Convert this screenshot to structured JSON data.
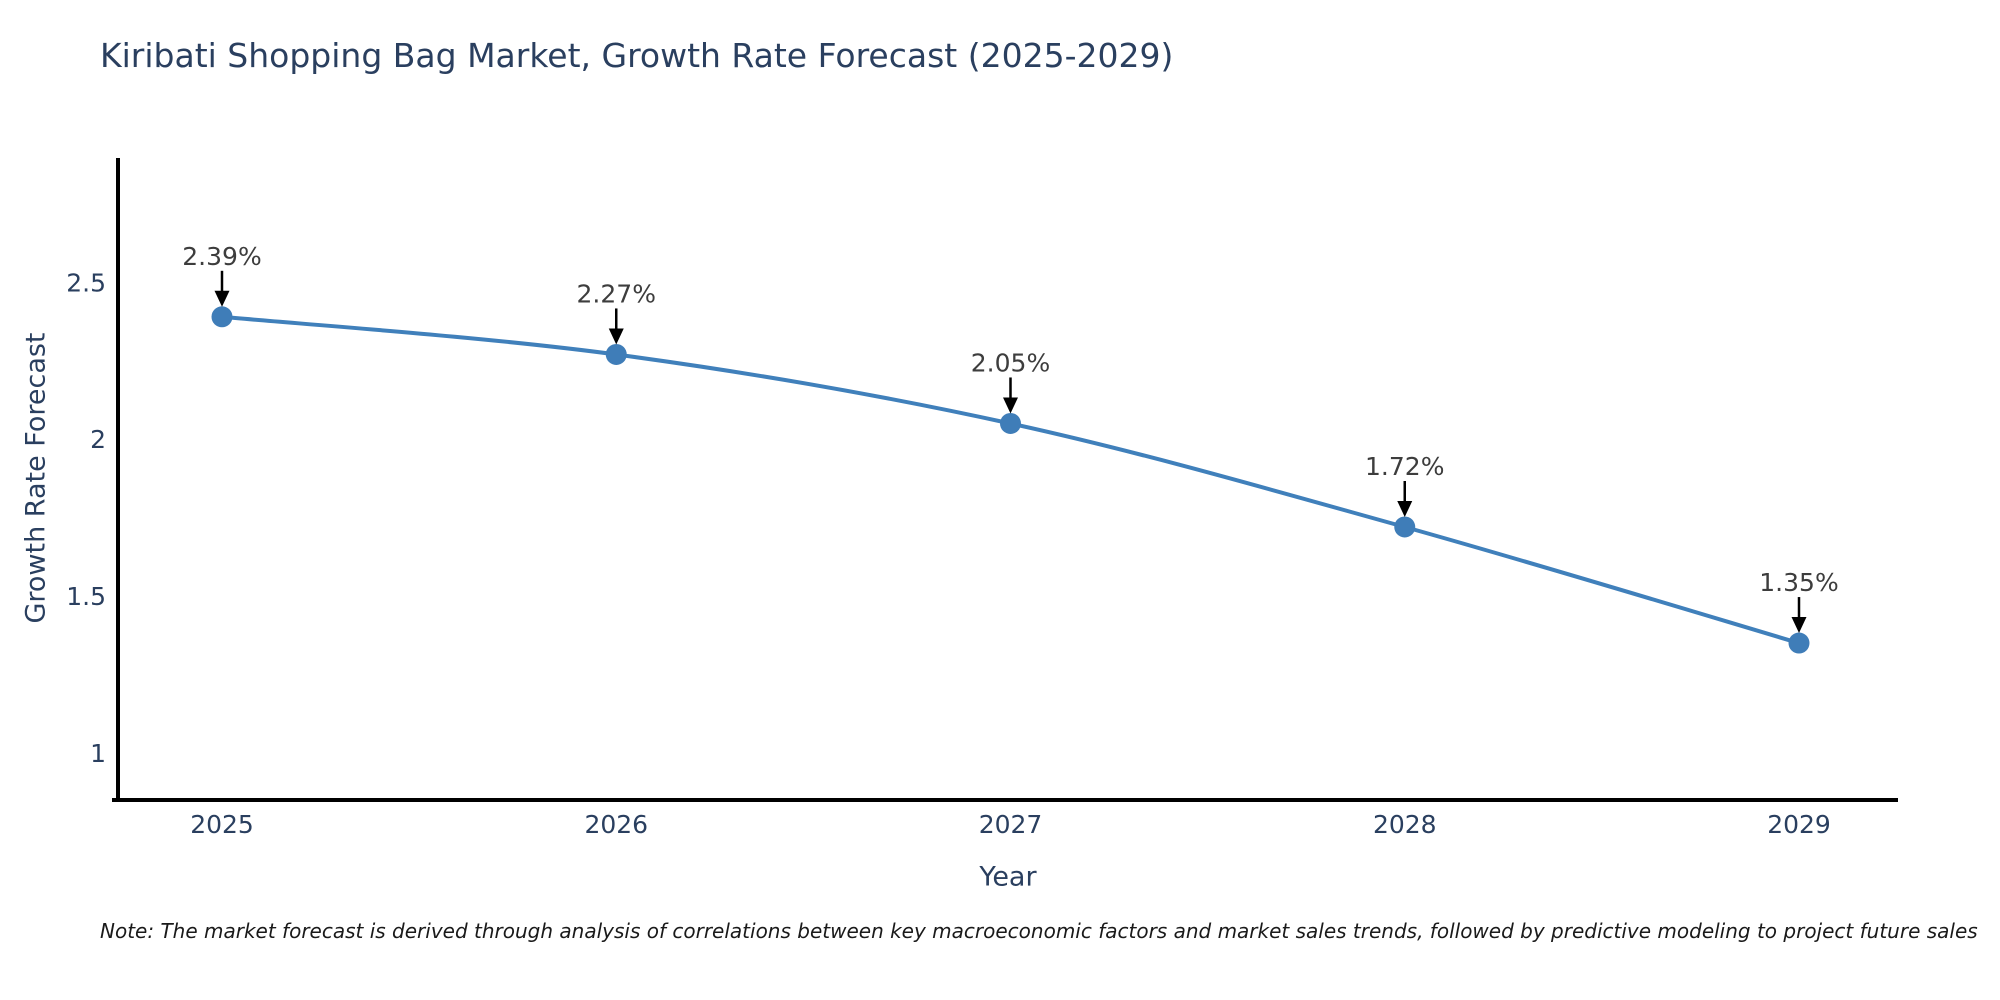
{
  "page": {
    "background_color": "#ffffff"
  },
  "chart_data": {
    "type": "line",
    "title": "Kiribati Shopping Bag Market, Growth Rate Forecast (2025-2029)",
    "xlabel": "Year",
    "ylabel": "Growth Rate Forecast",
    "categories": [
      "2025",
      "2026",
      "2027",
      "2028",
      "2029"
    ],
    "series": [
      {
        "name": "Growth Rate Forecast",
        "values": [
          2.39,
          2.27,
          2.05,
          1.72,
          1.35
        ]
      }
    ],
    "point_labels": [
      "2.39%",
      "2.27%",
      "2.05%",
      "1.72%",
      "1.35%"
    ],
    "yticks": [
      "2.5",
      "2",
      "1.5",
      "1"
    ],
    "ytick_values": [
      2.5,
      2,
      1.5,
      1
    ],
    "ylim": [
      0.85,
      2.9
    ],
    "grid": false,
    "legend": "none",
    "line_smoothing": "spline",
    "annotation_style": "down-arrow",
    "colors": {
      "line": "#4080bb",
      "marker": "#3f7db8",
      "spine": "#000000",
      "arrow": "#000000",
      "title_text": "#2a3f5f",
      "axis_text": "#2a3f5f",
      "annotation_text": "#3d3d3d",
      "note_text": "#1a1a1a"
    },
    "note": "Note: The market forecast is derived through analysis of correlations between key macroeconomic factors and market sales trends, followed by predictive modeling to project future sales"
  }
}
